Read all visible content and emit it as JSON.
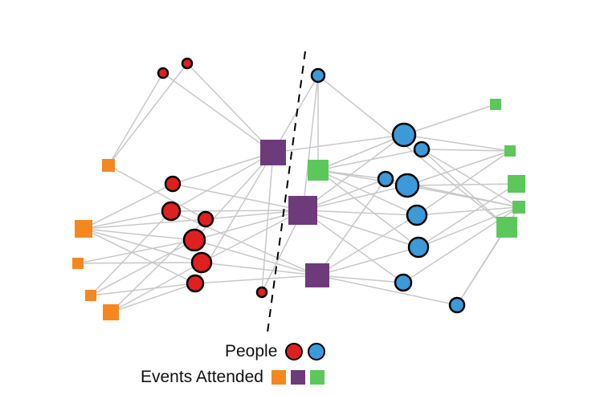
{
  "colors": {
    "people_group_a": "#e02020",
    "people_group_b": "#3d9ad8",
    "event_group_a": "#f6871f",
    "event_group_b": "#6e3b7a",
    "event_group_c": "#5cc85c",
    "edge": "#c8c8c8",
    "node_stroke": "#000000"
  },
  "legend": {
    "people_label": "People",
    "events_label": "Events Attended",
    "people_colors": [
      "#e02020",
      "#3d9ad8"
    ],
    "event_colors": [
      "#f6871f",
      "#6e3b7a",
      "#5cc85c"
    ]
  },
  "network": {
    "people": [
      {
        "id": "p1",
        "group": "a"
      },
      {
        "id": "p2",
        "group": "a"
      },
      {
        "id": "p3",
        "group": "a"
      },
      {
        "id": "p4",
        "group": "a"
      },
      {
        "id": "p5",
        "group": "a"
      },
      {
        "id": "p6",
        "group": "a"
      },
      {
        "id": "p7",
        "group": "a"
      },
      {
        "id": "p8",
        "group": "a"
      },
      {
        "id": "p9",
        "group": "a"
      },
      {
        "id": "p10",
        "group": "b"
      },
      {
        "id": "p11",
        "group": "b"
      },
      {
        "id": "p12",
        "group": "b"
      },
      {
        "id": "p13",
        "group": "b"
      },
      {
        "id": "p14",
        "group": "b"
      },
      {
        "id": "p15",
        "group": "b"
      },
      {
        "id": "p16",
        "group": "b"
      },
      {
        "id": "p17",
        "group": "b"
      },
      {
        "id": "p18",
        "group": "b"
      }
    ],
    "events": [
      {
        "id": "e1",
        "group": "a"
      },
      {
        "id": "e2",
        "group": "a"
      },
      {
        "id": "e3",
        "group": "a"
      },
      {
        "id": "e4",
        "group": "a"
      },
      {
        "id": "e5",
        "group": "a"
      },
      {
        "id": "e6",
        "group": "b"
      },
      {
        "id": "e7",
        "group": "b"
      },
      {
        "id": "e8",
        "group": "b"
      },
      {
        "id": "e9",
        "group": "c"
      },
      {
        "id": "e10",
        "group": "c"
      },
      {
        "id": "e11",
        "group": "c"
      },
      {
        "id": "e12",
        "group": "c"
      },
      {
        "id": "e13",
        "group": "c"
      },
      {
        "id": "e14",
        "group": "c"
      }
    ],
    "edges": [
      [
        "p1",
        "e1"
      ],
      [
        "p2",
        "e1"
      ],
      [
        "p1",
        "e6"
      ],
      [
        "p2",
        "e6"
      ],
      [
        "p3",
        "e2"
      ],
      [
        "p3",
        "e6"
      ],
      [
        "p3",
        "e7"
      ],
      [
        "p4",
        "e2"
      ],
      [
        "p4",
        "e4"
      ],
      [
        "p4",
        "e6"
      ],
      [
        "p4",
        "e7"
      ],
      [
        "p4",
        "e8"
      ],
      [
        "p5",
        "e1"
      ],
      [
        "p5",
        "e2"
      ],
      [
        "p5",
        "e5"
      ],
      [
        "p5",
        "e7"
      ],
      [
        "p6",
        "e2"
      ],
      [
        "p6",
        "e3"
      ],
      [
        "p6",
        "e4"
      ],
      [
        "p6",
        "e6"
      ],
      [
        "p6",
        "e7"
      ],
      [
        "p6",
        "e8"
      ],
      [
        "p7",
        "e2"
      ],
      [
        "p7",
        "e3"
      ],
      [
        "p7",
        "e5"
      ],
      [
        "p7",
        "e7"
      ],
      [
        "p7",
        "e8"
      ],
      [
        "p8",
        "e2"
      ],
      [
        "p8",
        "e4"
      ],
      [
        "p8",
        "e5"
      ],
      [
        "p8",
        "e6"
      ],
      [
        "p8",
        "e8"
      ],
      [
        "p9",
        "e6"
      ],
      [
        "p9",
        "e7"
      ],
      [
        "p10",
        "e6"
      ],
      [
        "p10",
        "e9"
      ],
      [
        "p10",
        "e7"
      ],
      [
        "p11",
        "e9"
      ],
      [
        "p11",
        "e10"
      ],
      [
        "p11",
        "e11"
      ],
      [
        "p11",
        "e6"
      ],
      [
        "p12",
        "e9"
      ],
      [
        "p12",
        "e11"
      ],
      [
        "p12",
        "e13"
      ],
      [
        "p12",
        "e14"
      ],
      [
        "p13",
        "e9"
      ],
      [
        "p13",
        "e7"
      ],
      [
        "p13",
        "e8"
      ],
      [
        "p14",
        "e7"
      ],
      [
        "p14",
        "e9"
      ],
      [
        "p14",
        "e11"
      ],
      [
        "p14",
        "e12"
      ],
      [
        "p14",
        "e13"
      ],
      [
        "p15",
        "e7"
      ],
      [
        "p15",
        "e8"
      ],
      [
        "p15",
        "e9"
      ],
      [
        "p15",
        "e11"
      ],
      [
        "p15",
        "e13"
      ],
      [
        "p16",
        "e7"
      ],
      [
        "p16",
        "e8"
      ],
      [
        "p16",
        "e9"
      ],
      [
        "p16",
        "e12"
      ],
      [
        "p16",
        "e13"
      ],
      [
        "p17",
        "e7"
      ],
      [
        "p17",
        "e8"
      ],
      [
        "p17",
        "e13"
      ],
      [
        "p18",
        "e8"
      ],
      [
        "p18",
        "e13"
      ],
      [
        "p18",
        "e14"
      ],
      [
        "p10",
        "e14"
      ],
      [
        "p11",
        "e7"
      ],
      [
        "p13",
        "e13"
      ]
    ]
  }
}
